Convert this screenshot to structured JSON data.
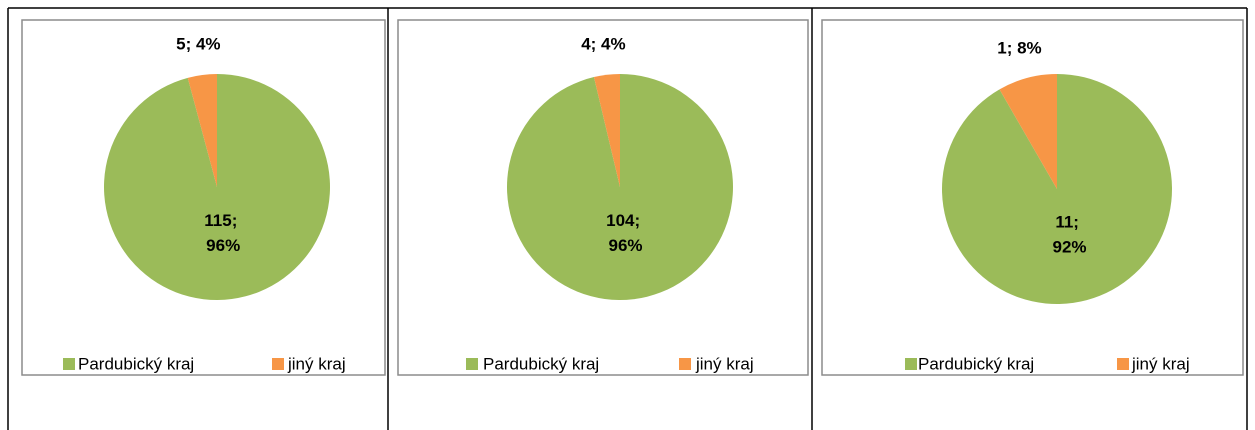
{
  "chart_data": [
    {
      "type": "pie",
      "categories": [
        "Pardubický kraj",
        "jiný kraj"
      ],
      "values": [
        115,
        5
      ],
      "value_labels": [
        "115; 96%",
        "5; 4%"
      ],
      "colors": [
        "#9bbb59",
        "#f79646"
      ]
    },
    {
      "type": "pie",
      "categories": [
        "Pardubický kraj",
        "jiný kraj"
      ],
      "values": [
        104,
        4
      ],
      "value_labels": [
        "104; 96%",
        "4; 4%"
      ],
      "colors": [
        "#9bbb59",
        "#f79646"
      ]
    },
    {
      "type": "pie",
      "categories": [
        "Pardubický kraj",
        "jiný kraj"
      ],
      "values": [
        11,
        1
      ],
      "value_labels": [
        "11; 92%",
        "1; 8%"
      ],
      "colors": [
        "#9bbb59",
        "#f79646"
      ]
    }
  ]
}
